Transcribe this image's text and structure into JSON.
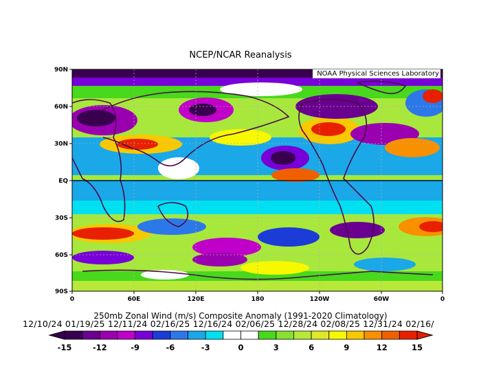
{
  "header": {
    "title": "NCEP/NCAR Reanalysis"
  },
  "map": {
    "credit": "NOAA Physical Sciences Laboratory",
    "lat_labels": [
      "90N",
      "60N",
      "30N",
      "EQ",
      "30S",
      "60S",
      "90S"
    ],
    "lon_labels": [
      "0",
      "60E",
      "120E",
      "180",
      "120W",
      "60W",
      "0"
    ]
  },
  "caption": {
    "line1": "250mb Zonal Wind (m/s) Composite Anomaly (1991-2020 Climatology)",
    "dates": "12/10/24 01/19/25 12/11/24 02/16/25 12/16/24 02/06/25 12/28/24 02/08/25 12/31/24 02/16/"
  },
  "colorbar": {
    "labels": [
      "-15",
      "-12",
      "-9",
      "-6",
      "-3",
      "0",
      "3",
      "6",
      "9",
      "12",
      "15"
    ],
    "colors": [
      "#3a0050",
      "#6a0090",
      "#9a00b0",
      "#c000c8",
      "#7800d8",
      "#1c3cd8",
      "#2d78e8",
      "#1aa8e8",
      "#00e0f0",
      "#ffffff",
      "#ffffff",
      "#48d81c",
      "#88e030",
      "#b8e838",
      "#e0e828",
      "#f8f800",
      "#f8c800",
      "#f89000",
      "#f06000",
      "#e82000"
    ]
  },
  "style": {
    "background": "#ffffff",
    "coast_color": "#4a0a4a"
  }
}
